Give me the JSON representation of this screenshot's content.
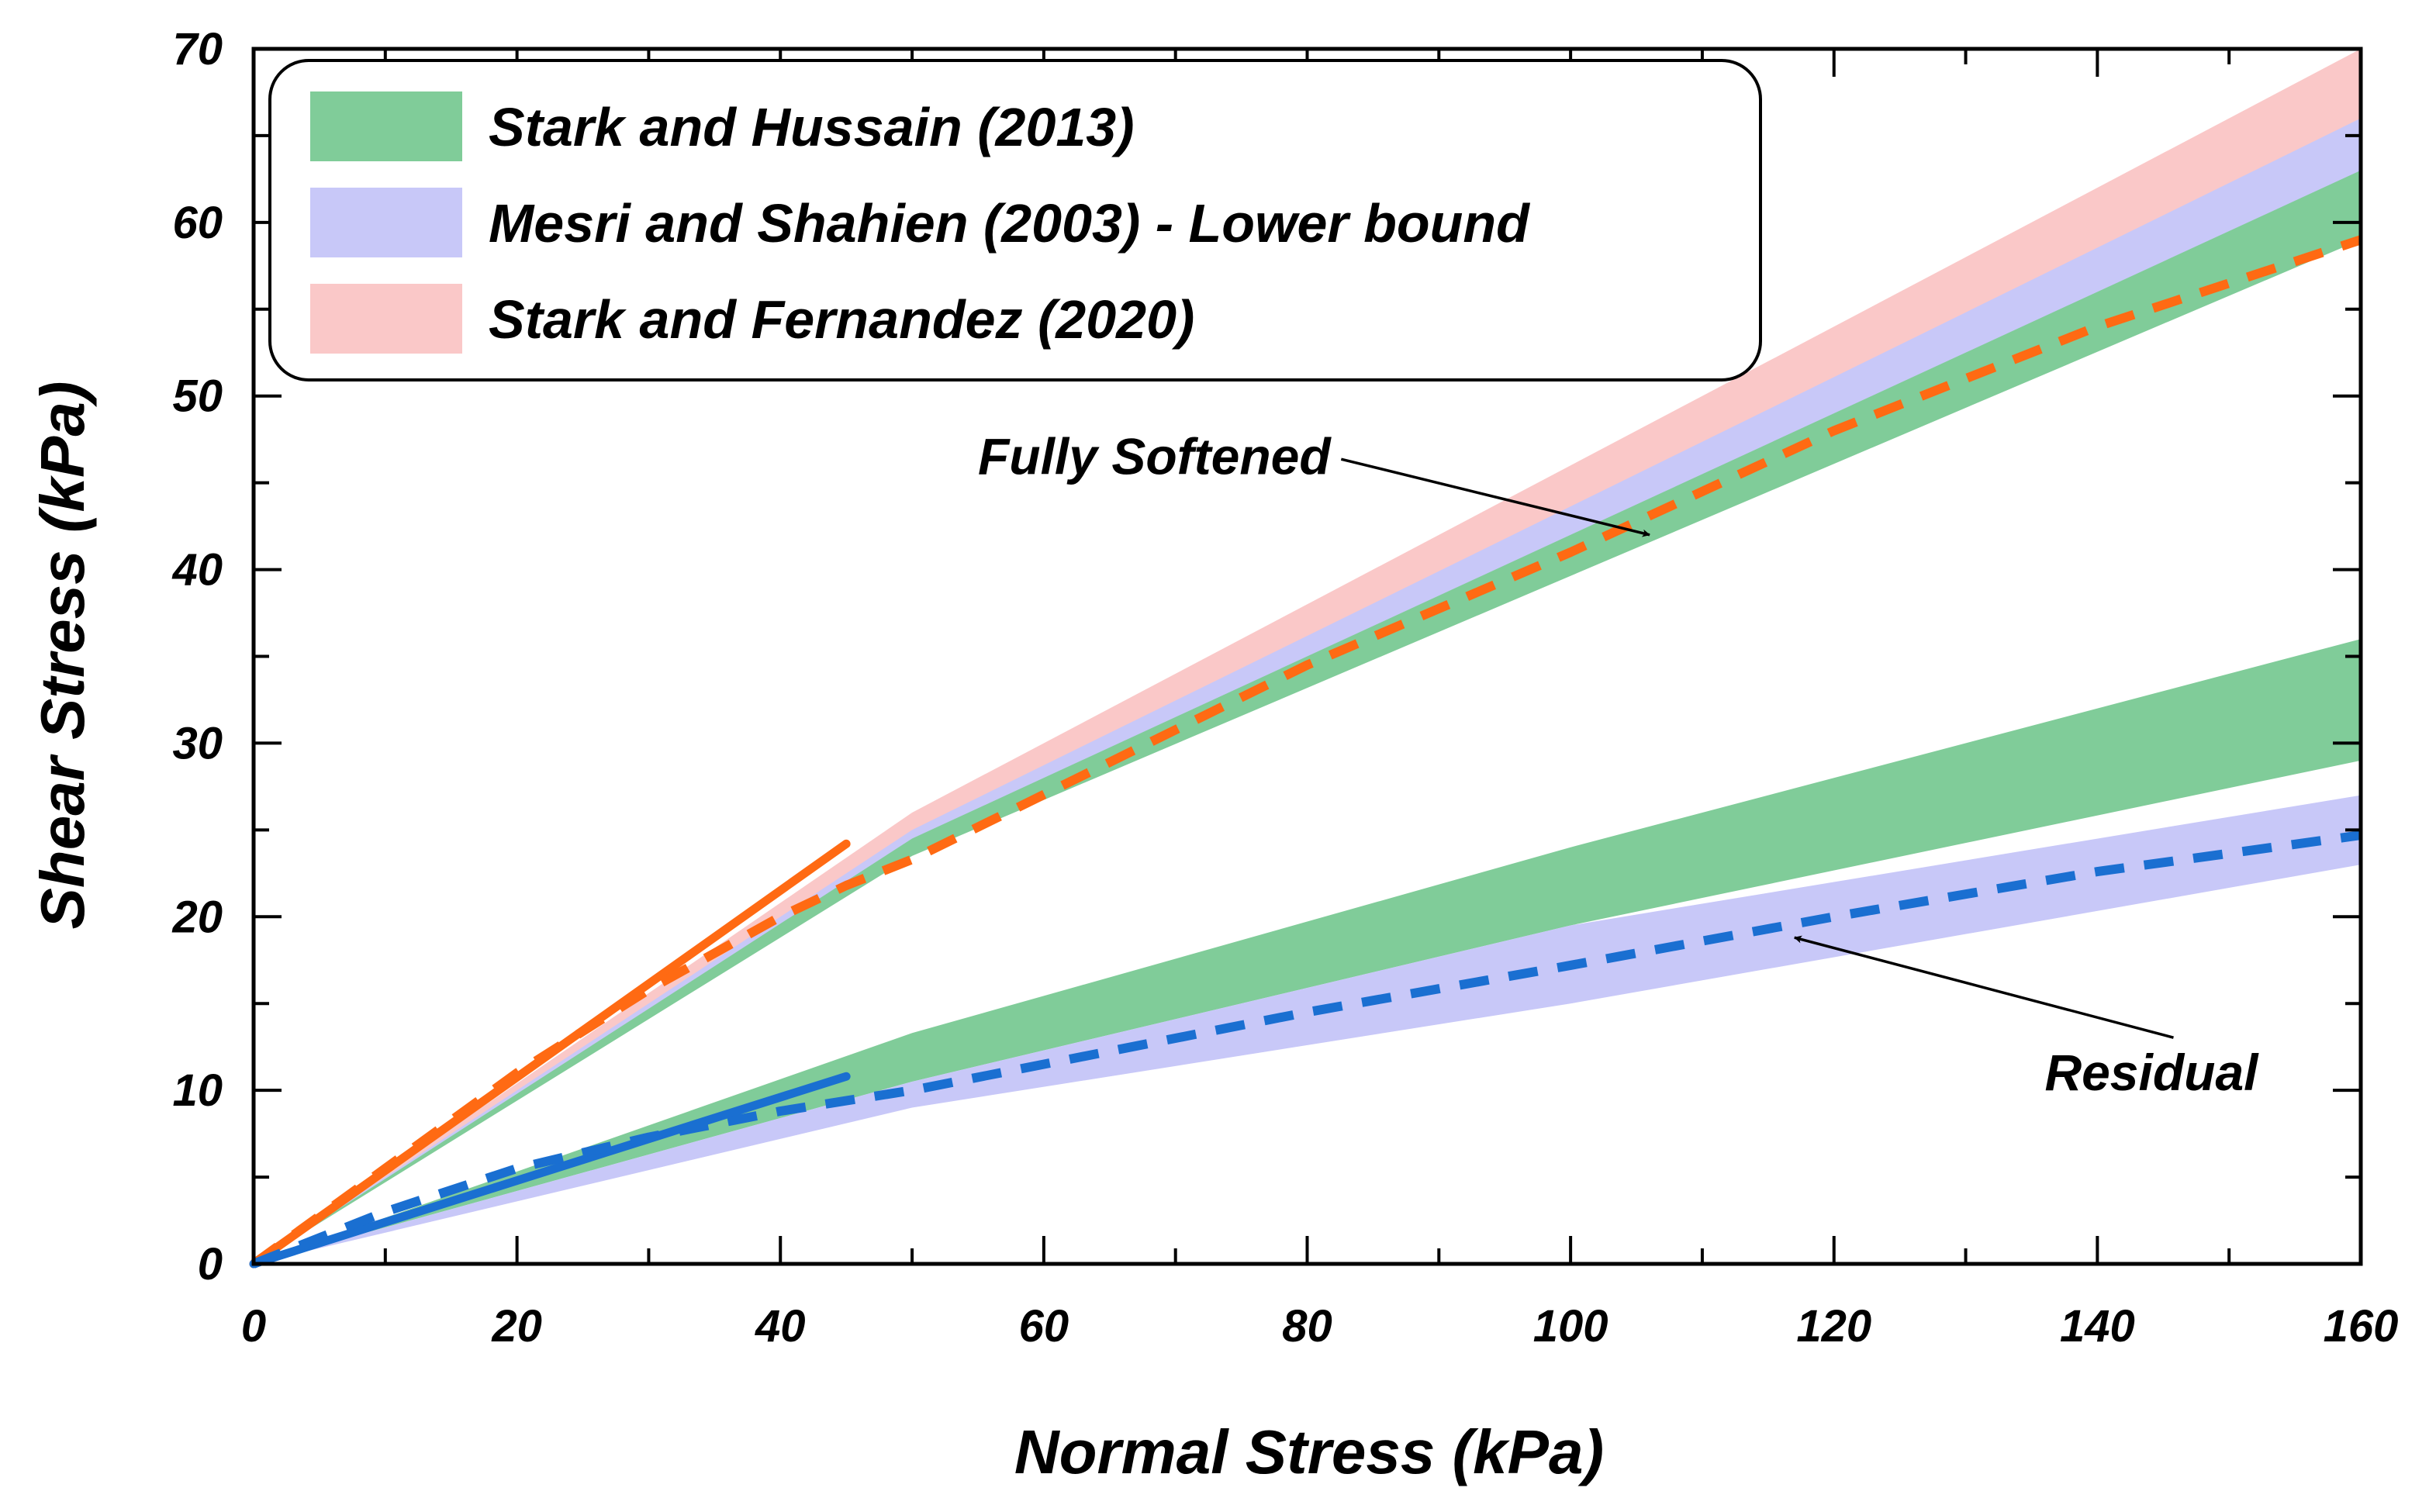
{
  "chart_data": {
    "type": "area",
    "title": "",
    "xlabel": "Normal Stress (kPa)",
    "ylabel": "Shear Stress (kPa)",
    "xlim": [
      0,
      160
    ],
    "ylim": [
      0,
      70
    ],
    "x_ticks": [
      0,
      20,
      40,
      60,
      80,
      100,
      120,
      140,
      160
    ],
    "y_ticks": [
      0,
      10,
      20,
      30,
      40,
      50,
      60,
      70
    ],
    "grid": false,
    "legend_position": "top-left",
    "legend": [
      {
        "label": "Stark and Hussain (2013)",
        "color": "#80cc99"
      },
      {
        "label": "Mesri and Shahien (2003) - Lower bound",
        "color": "#c8c8f8"
      },
      {
        "label": "Stark and Fernandez (2020)",
        "color": "#fac8c8"
      }
    ],
    "bands": [
      {
        "name": "Stark and Fernandez (2020) - Fully Softened",
        "color": "#fac8c8",
        "upper": [
          [
            0,
            0
          ],
          [
            50,
            26
          ],
          [
            160,
            70
          ]
        ],
        "lower": [
          [
            0,
            0
          ],
          [
            50,
            24
          ],
          [
            160,
            59
          ]
        ]
      },
      {
        "name": "Mesri and Shahien (2003) - Fully Softened",
        "color": "#c8c8f8",
        "upper": [
          [
            0,
            0
          ],
          [
            50,
            25
          ],
          [
            160,
            66
          ]
        ],
        "lower": [
          [
            0,
            0
          ],
          [
            50,
            24
          ],
          [
            160,
            59
          ]
        ]
      },
      {
        "name": "Stark and Hussain (2013) - Fully Softened",
        "color": "#80cc99",
        "upper": [
          [
            0,
            0
          ],
          [
            50,
            24.5
          ],
          [
            160,
            63
          ]
        ],
        "lower": [
          [
            0,
            0
          ],
          [
            50,
            23.5
          ],
          [
            160,
            59
          ]
        ]
      },
      {
        "name": "Stark and Hussain (2013) - Residual",
        "color": "#80cc99",
        "upper": [
          [
            0,
            0
          ],
          [
            50,
            13.3
          ],
          [
            100,
            24
          ],
          [
            160,
            36
          ]
        ],
        "lower": [
          [
            0,
            0
          ],
          [
            50,
            10.5
          ],
          [
            100,
            19.5
          ],
          [
            160,
            29
          ]
        ]
      },
      {
        "name": "Mesri and Shahien (2003) - Residual",
        "color": "#c8c8f8",
        "upper": [
          [
            0,
            0
          ],
          [
            50,
            10.5
          ],
          [
            100,
            19.5
          ],
          [
            160,
            27
          ]
        ],
        "lower": [
          [
            0,
            0
          ],
          [
            50,
            9
          ],
          [
            100,
            15
          ],
          [
            160,
            23
          ]
        ]
      }
    ],
    "series": [
      {
        "name": "Fully softened fit (solid)",
        "color": "#ff6a13",
        "dash": false,
        "points": [
          [
            0,
            0
          ],
          [
            45,
            24.2
          ]
        ]
      },
      {
        "name": "Fully softened fit (dashed)",
        "color": "#ff6a13",
        "dash": true,
        "points": [
          [
            0,
            0
          ],
          [
            10,
            5.5
          ],
          [
            20,
            11
          ],
          [
            30,
            15.8
          ],
          [
            40,
            20
          ],
          [
            45,
            21.8
          ],
          [
            50,
            23.3
          ],
          [
            80,
            34.5
          ],
          [
            100,
            41
          ],
          [
            120,
            48
          ],
          [
            140,
            54
          ],
          [
            160,
            59
          ]
        ]
      },
      {
        "name": "Residual fit (solid)",
        "color": "#1a6fd1",
        "dash": false,
        "points": [
          [
            0,
            0
          ],
          [
            45,
            10.8
          ]
        ]
      },
      {
        "name": "Residual fit (dashed)",
        "color": "#1a6fd1",
        "dash": true,
        "points": [
          [
            0,
            0
          ],
          [
            10,
            3
          ],
          [
            20,
            5.5
          ],
          [
            30,
            7.3
          ],
          [
            40,
            8.8
          ],
          [
            50,
            10
          ],
          [
            80,
            14.5
          ],
          [
            100,
            17.2
          ],
          [
            120,
            20
          ],
          [
            140,
            22.6
          ],
          [
            160,
            24.7
          ]
        ]
      }
    ],
    "annotations": [
      {
        "text": "Fully Softened",
        "anchor": [
          55,
          45.5
        ],
        "arrow_to": [
          106,
          42
        ]
      },
      {
        "text": "Residual",
        "anchor": [
          136,
          10
        ],
        "arrow_to": [
          117,
          18.8
        ]
      }
    ]
  }
}
